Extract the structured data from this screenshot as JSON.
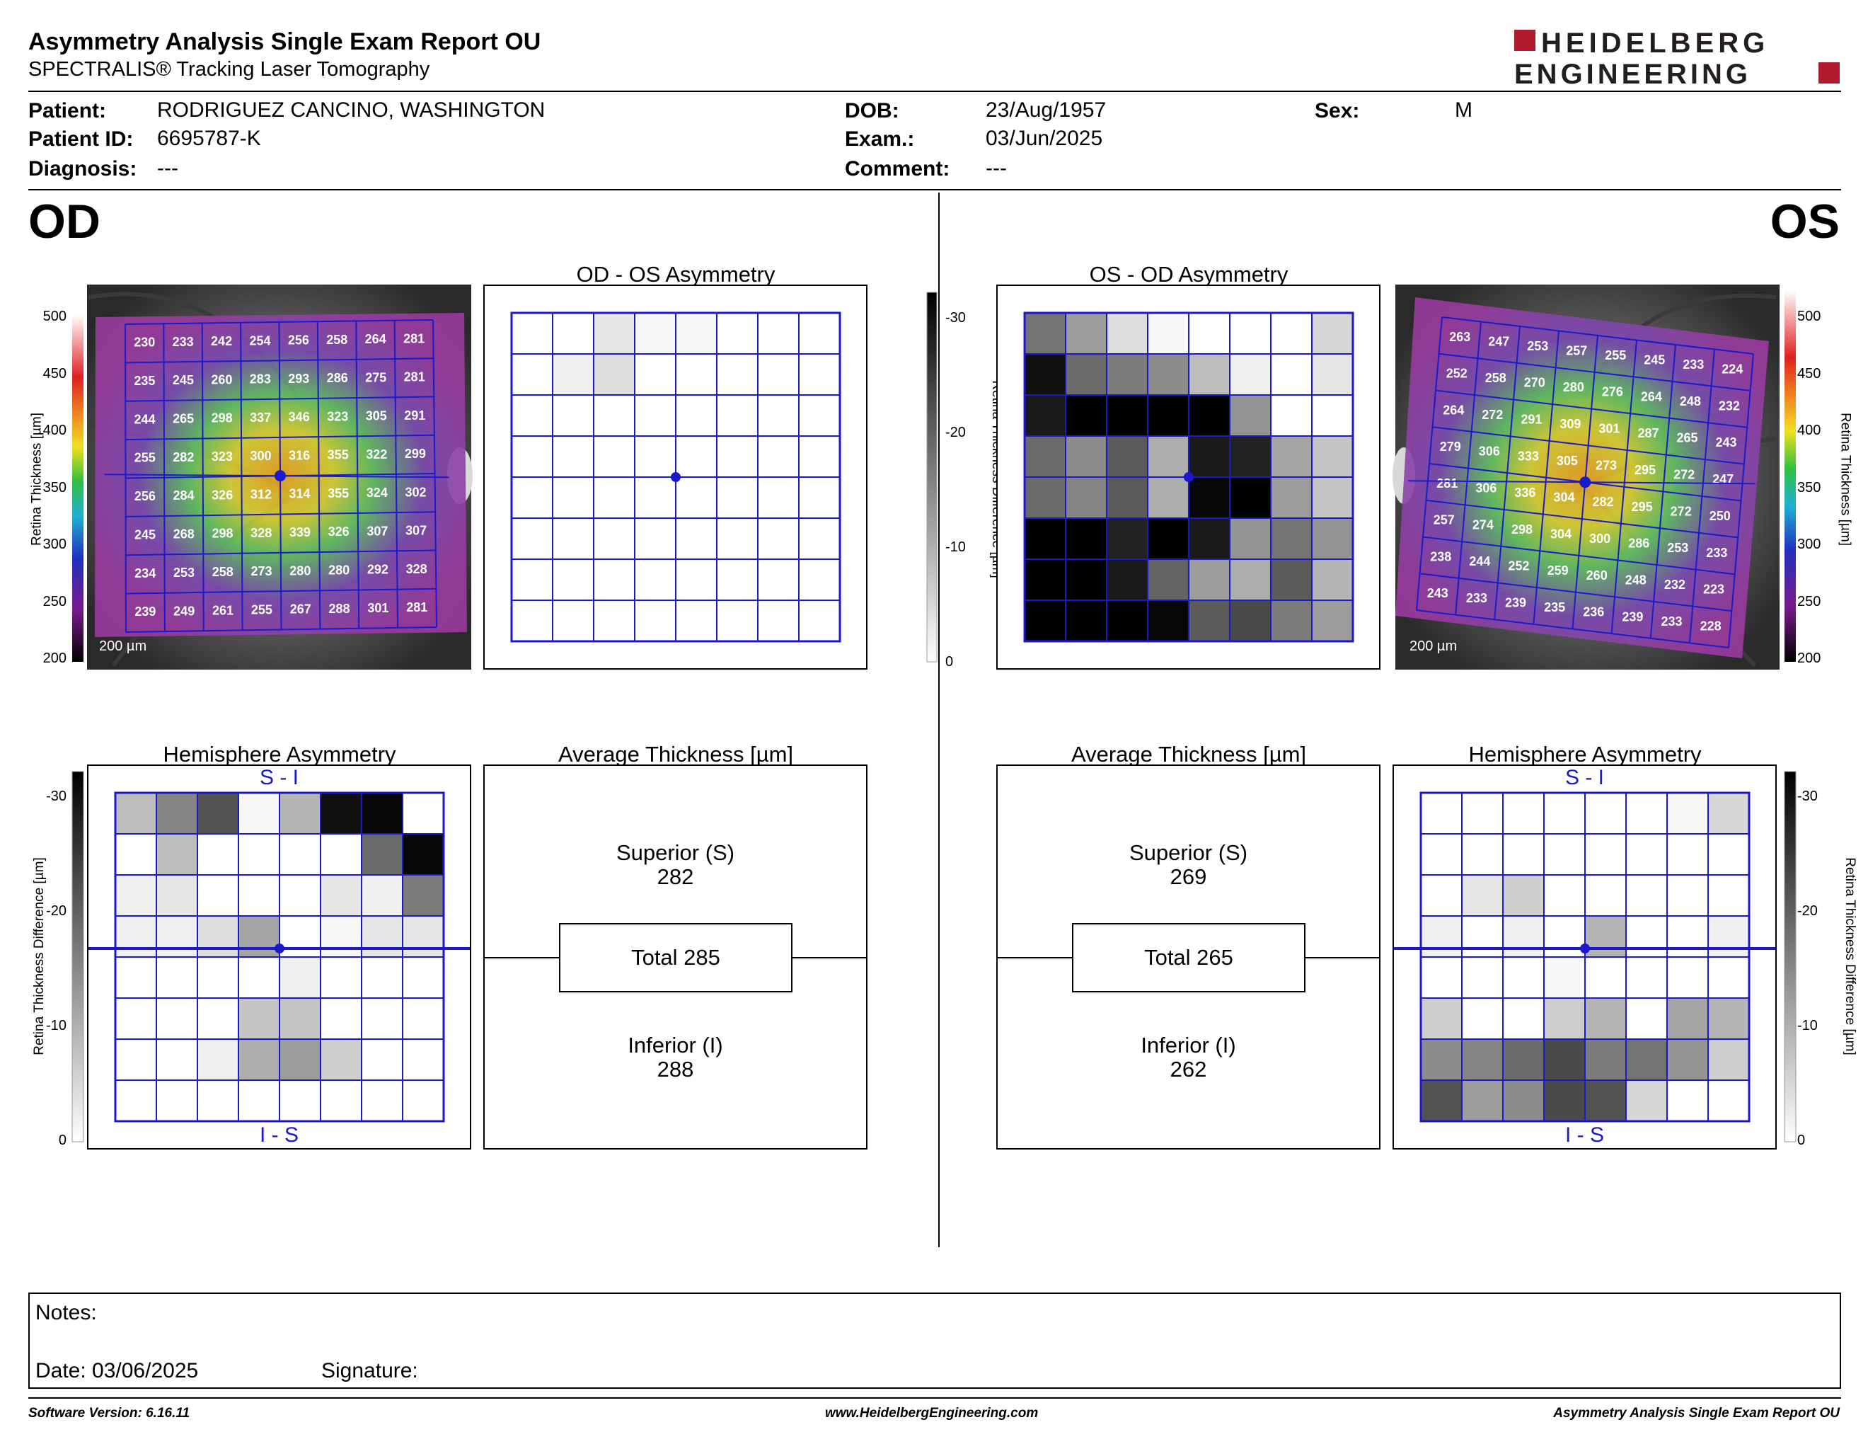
{
  "header": {
    "title": "Asymmetry Analysis Single Exam Report OU",
    "subtitle": "SPECTRALIS® Tracking Laser Tomography",
    "logo_line1": "HEIDELBERG",
    "logo_line2": "ENGINEERING"
  },
  "patient": {
    "patient_label": "Patient:",
    "patient_value": "RODRIGUEZ CANCINO, WASHINGTON",
    "id_label": "Patient ID:",
    "id_value": "6695787-K",
    "diagnosis_label": "Diagnosis:",
    "diagnosis_value": "---",
    "dob_label": "DOB:",
    "dob_value": "23/Aug/1957",
    "exam_label": "Exam.:",
    "exam_value": "03/Jun/2025",
    "comment_label": "Comment:",
    "comment_value": "---",
    "sex_label": "Sex:",
    "sex_value": "M"
  },
  "od": {
    "eye_label": "OD",
    "asym_title": "OD - OS Asymmetry",
    "hemi_title": "Hemisphere Asymmetry",
    "avg_title": "Average Thickness [µm]",
    "superior_label": "Superior (S)",
    "superior_value": "282",
    "total_label": "Total 285",
    "inferior_label": "Inferior (I)",
    "inferior_value": "288",
    "hemi_top": "S - I",
    "hemi_bottom": "I - S",
    "scalebar": "200 µm",
    "thickness_grid": [
      [
        230,
        233,
        242,
        254,
        256,
        258,
        264,
        281
      ],
      [
        235,
        245,
        260,
        283,
        293,
        286,
        275,
        281
      ],
      [
        244,
        265,
        298,
        337,
        346,
        323,
        305,
        291
      ],
      [
        255,
        282,
        323,
        300,
        316,
        355,
        322,
        299
      ],
      [
        256,
        284,
        326,
        312,
        314,
        355,
        324,
        302
      ],
      [
        245,
        268,
        298,
        328,
        339,
        326,
        307,
        307
      ],
      [
        234,
        253,
        258,
        273,
        280,
        280,
        292,
        328
      ],
      [
        239,
        249,
        261,
        255,
        267,
        288,
        301,
        281
      ]
    ],
    "asym_grid": [
      [
        0,
        0,
        3,
        1,
        1,
        0,
        0,
        0
      ],
      [
        0,
        2,
        4,
        0,
        0,
        0,
        0,
        0
      ],
      [
        0,
        0,
        0,
        0,
        0,
        0,
        0,
        0
      ],
      [
        0,
        0,
        0,
        0,
        0,
        0,
        0,
        0
      ],
      [
        0,
        0,
        0,
        0,
        0,
        0,
        0,
        0
      ],
      [
        0,
        0,
        0,
        0,
        0,
        0,
        0,
        0
      ],
      [
        0,
        0,
        0,
        0,
        0,
        0,
        0,
        0
      ],
      [
        0,
        0,
        0,
        0,
        0,
        0,
        0,
        0
      ]
    ],
    "hemi_grid": [
      [
        8,
        15,
        21,
        1,
        9,
        29,
        30,
        0
      ],
      [
        0,
        8,
        0,
        0,
        0,
        0,
        18,
        30
      ],
      [
        2,
        3,
        0,
        0,
        0,
        3,
        2,
        16
      ],
      [
        2,
        2,
        4,
        11,
        0,
        1,
        3,
        3
      ],
      [
        0,
        0,
        0,
        0,
        2,
        0,
        0,
        0
      ],
      [
        0,
        0,
        0,
        7,
        7,
        0,
        0,
        0
      ],
      [
        0,
        0,
        2,
        10,
        12,
        6,
        0,
        0
      ],
      [
        0,
        0,
        0,
        0,
        0,
        0,
        0,
        0
      ]
    ]
  },
  "os": {
    "eye_label": "OS",
    "asym_title": "OS - OD Asymmetry",
    "hemi_title": "Hemisphere Asymmetry",
    "avg_title": "Average Thickness [µm]",
    "superior_label": "Superior (S)",
    "superior_value": "269",
    "total_label": "Total 265",
    "inferior_label": "Inferior (I)",
    "inferior_value": "262",
    "hemi_top": "S - I",
    "hemi_bottom": "I - S",
    "scalebar": "200 µm",
    "thickness_grid": [
      [
        263,
        247,
        253,
        257,
        255,
        245,
        233,
        224
      ],
      [
        252,
        258,
        270,
        280,
        276,
        264,
        248,
        232
      ],
      [
        264,
        272,
        291,
        309,
        301,
        287,
        265,
        243
      ],
      [
        279,
        306,
        333,
        305,
        273,
        295,
        272,
        247
      ],
      [
        281,
        306,
        336,
        304,
        282,
        295,
        272,
        250
      ],
      [
        257,
        274,
        298,
        304,
        300,
        286,
        253,
        233
      ],
      [
        238,
        244,
        252,
        259,
        260,
        248,
        232,
        223
      ],
      [
        243,
        233,
        239,
        235,
        236,
        239,
        233,
        228
      ]
    ],
    "asym_grid": [
      [
        17,
        12,
        4,
        1,
        0,
        0,
        0,
        5
      ],
      [
        29,
        18,
        16,
        14,
        8,
        2,
        0,
        3
      ],
      [
        28,
        31,
        31,
        31,
        31,
        13,
        0,
        0
      ],
      [
        18,
        14,
        20,
        10,
        28,
        27,
        11,
        7
      ],
      [
        18,
        15,
        20,
        10,
        30,
        31,
        12,
        7
      ],
      [
        31,
        31,
        27,
        31,
        28,
        13,
        17,
        13
      ],
      [
        31,
        31,
        28,
        19,
        12,
        10,
        20,
        9
      ],
      [
        31,
        31,
        31,
        30,
        20,
        22,
        16,
        12
      ]
    ],
    "hemi_grid": [
      [
        0,
        0,
        0,
        0,
        0,
        0,
        1,
        5
      ],
      [
        0,
        0,
        0,
        0,
        0,
        0,
        0,
        0
      ],
      [
        0,
        3,
        6,
        0,
        0,
        0,
        0,
        0
      ],
      [
        2,
        0,
        2,
        0,
        9,
        0,
        0,
        2
      ],
      [
        0,
        0,
        0,
        1,
        0,
        0,
        0,
        0
      ],
      [
        6,
        0,
        0,
        6,
        9,
        0,
        11,
        9
      ],
      [
        14,
        15,
        18,
        22,
        16,
        17,
        13,
        6
      ],
      [
        21,
        12,
        14,
        22,
        21,
        5,
        0,
        0
      ]
    ]
  },
  "scales": {
    "thickness_ticks": [
      "500",
      "450",
      "400",
      "350",
      "300",
      "250",
      "200"
    ],
    "thickness_axis_label": "Retina  Thickness [µm]",
    "diff_ticks": [
      "-30",
      "-20",
      "-10",
      "0"
    ],
    "diff_axis_label": "Retina Thickness Difference [µm]"
  },
  "notes": {
    "notes_label": "Notes:",
    "date_label": "Date: 03/06/2025",
    "signature_label": "Signature:"
  },
  "footer": {
    "software": "Software Version: 6.16.11",
    "website": "www.HeidelbergEngineering.com",
    "report": "Asymmetry Analysis Single Exam Report OU"
  },
  "colors": {
    "grid_blue": "#1a1acc",
    "logo_red": "#b01c2e",
    "logo_grey": "#231f20"
  }
}
